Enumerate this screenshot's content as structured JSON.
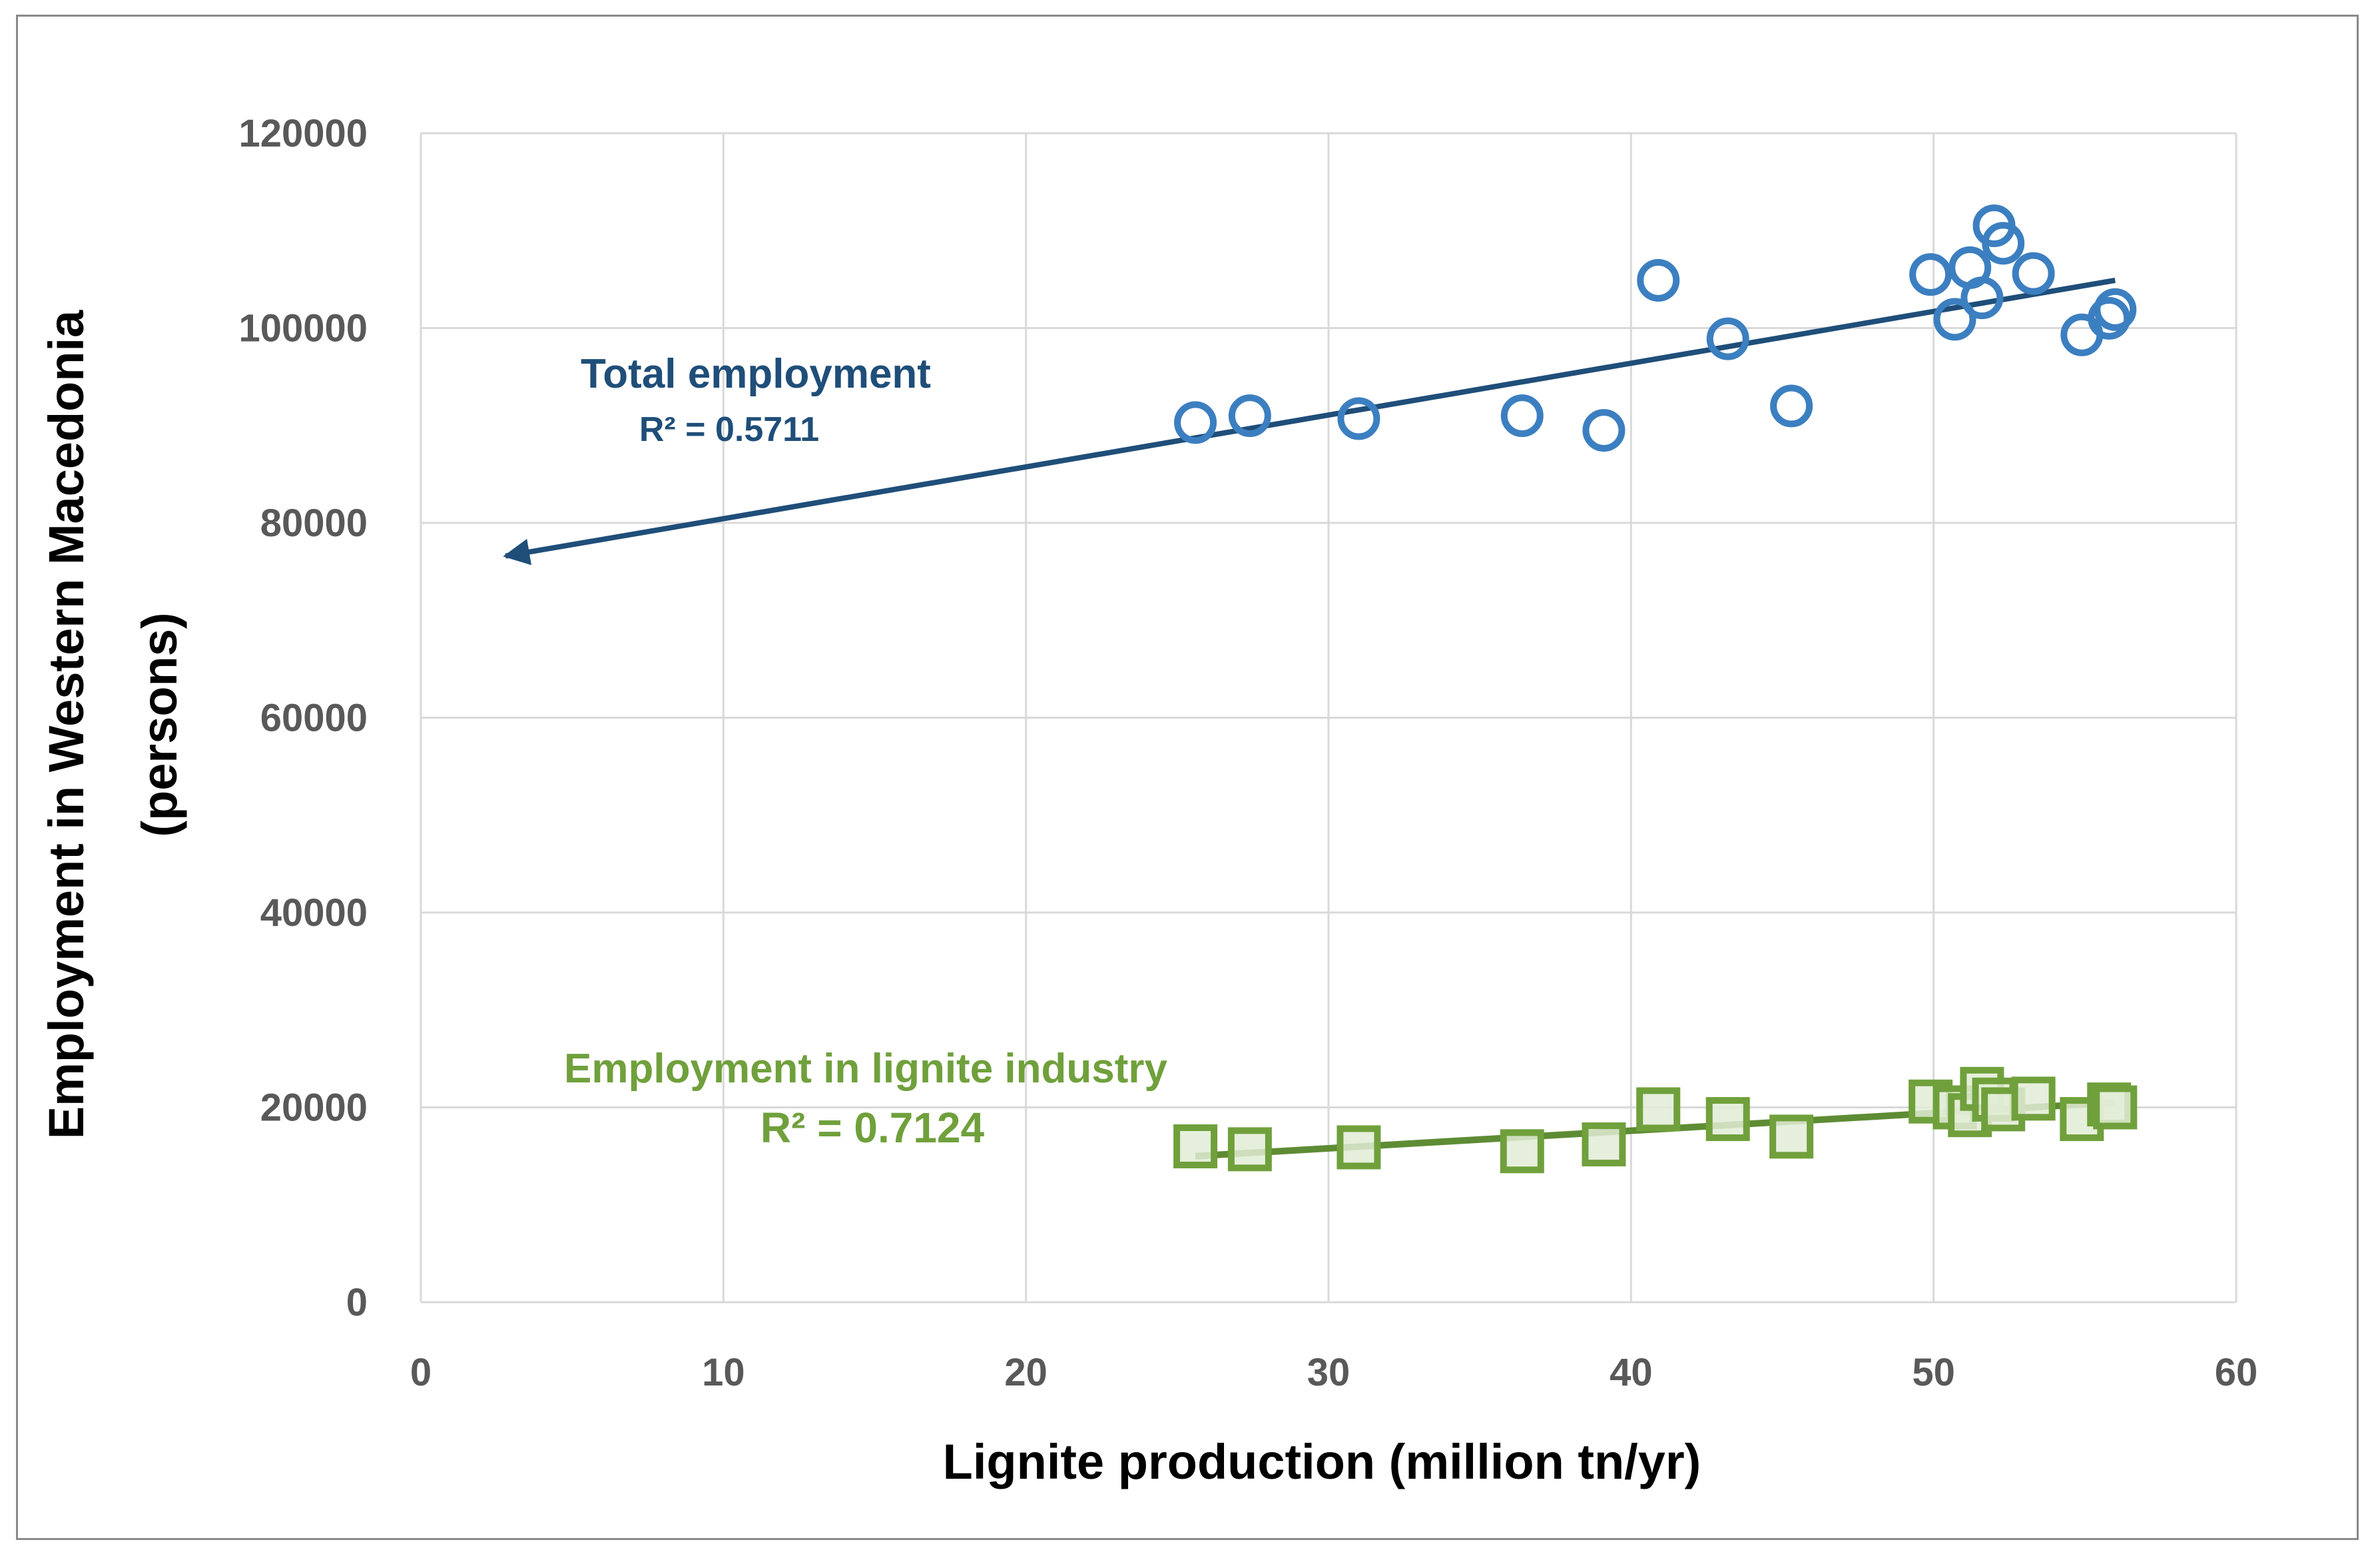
{
  "chart_data": {
    "type": "scatter",
    "xlabel": "Lignite production (million tn/yr)",
    "ylabel_line1": "Employment in Western Macedonia",
    "ylabel_line2": "(persons)",
    "xlim": [
      0,
      60
    ],
    "ylim": [
      0,
      120000
    ],
    "x_ticks": [
      "0",
      "10",
      "20",
      "30",
      "40",
      "50",
      "60"
    ],
    "y_ticks": [
      "0",
      "20000",
      "40000",
      "60000",
      "80000",
      "100000",
      "120000"
    ],
    "grid": true,
    "colors": {
      "total_marker": "#3c7fc0",
      "total_trend": "#1f4e79",
      "lignite_marker": "#70a03c",
      "lignite_fill": "#e2ecd6",
      "lignite_trend": "#5e8c34",
      "grid": "#d9d9d9",
      "frame": "#8a8a8a"
    },
    "series": [
      {
        "marker": "circle-open",
        "points": [
          [
            25.6,
            90300
          ],
          [
            27.4,
            91000
          ],
          [
            31.0,
            90700
          ],
          [
            36.4,
            91000
          ],
          [
            39.1,
            89500
          ],
          [
            40.9,
            104900
          ],
          [
            43.2,
            98900
          ],
          [
            45.3,
            92000
          ],
          [
            49.9,
            105500
          ],
          [
            50.7,
            100900
          ],
          [
            51.2,
            106200
          ],
          [
            51.6,
            103100
          ],
          [
            52.0,
            110500
          ],
          [
            52.3,
            108700
          ],
          [
            53.3,
            105600
          ],
          [
            54.9,
            99300
          ],
          [
            55.8,
            101000
          ],
          [
            56.0,
            101900
          ]
        ],
        "trendline": {
          "x": [
            56.0,
            2.8
          ],
          "y": [
            104900,
            76600
          ],
          "arrow": "end"
        },
        "annotation": {
          "label": "Total employment",
          "r2": "R² = 0.5711"
        }
      },
      {
        "marker": "square-open",
        "points": [
          [
            25.6,
            16000
          ],
          [
            27.4,
            15700
          ],
          [
            31.0,
            15900
          ],
          [
            36.4,
            15500
          ],
          [
            39.1,
            16200
          ],
          [
            40.9,
            19800
          ],
          [
            43.2,
            18800
          ],
          [
            45.3,
            17000
          ],
          [
            49.9,
            20600
          ],
          [
            50.7,
            20000
          ],
          [
            51.2,
            19200
          ],
          [
            51.6,
            21900
          ],
          [
            52.0,
            20800
          ],
          [
            52.3,
            19800
          ],
          [
            53.3,
            20900
          ],
          [
            54.9,
            18800
          ],
          [
            55.8,
            20300
          ],
          [
            56.0,
            20000
          ]
        ],
        "trendline": {
          "x": [
            25.6,
            56.0
          ],
          "y": [
            15000,
            20500
          ]
        },
        "annotation": {
          "label": "Employment in lignite industry",
          "r2": "R² = 0.7124"
        }
      }
    ]
  }
}
